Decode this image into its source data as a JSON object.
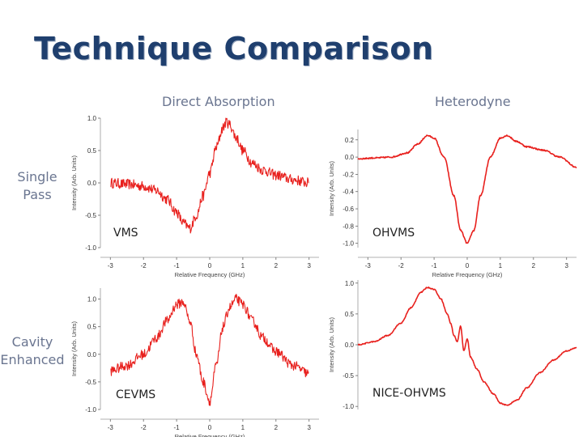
{
  "slide": {
    "title": "Technique Comparison",
    "columns": [
      "Direct Absorption",
      "Heterodyne"
    ],
    "rows": [
      [
        "Single",
        "Pass"
      ],
      [
        "Cavity",
        "Enhanced"
      ]
    ]
  },
  "colors": {
    "trace": "#e8201d",
    "title": "#1f3f6e",
    "subtitle": "#6a7590"
  },
  "chart_data": [
    {
      "type": "line",
      "tag": "VMS",
      "xlabel": "Relative Frequency (GHz)",
      "ylabel": "Intensity (Arb. Units)",
      "xlim": [
        -3.3,
        3.3
      ],
      "ylim": [
        -1.0,
        1.0
      ],
      "xticks": [
        "-3",
        "-2",
        "-1",
        "0",
        "1",
        "2",
        "3"
      ],
      "xtick_values": [
        -3,
        -2,
        -1,
        0,
        1,
        2,
        3
      ],
      "yticks": [
        "-1.0",
        "-0.5",
        "0.0",
        "0.5",
        "1.0"
      ],
      "ytick_values": [
        -1.0,
        -0.5,
        0.0,
        0.5,
        1.0
      ],
      "x": [
        -3.0,
        -2.5,
        -2.0,
        -1.6,
        -1.3,
        -1.0,
        -0.8,
        -0.6,
        -0.4,
        -0.2,
        0.0,
        0.2,
        0.4,
        0.5,
        0.6,
        0.8,
        1.0,
        1.3,
        1.6,
        2.0,
        2.5,
        3.0
      ],
      "y": [
        0.0,
        -0.02,
        -0.05,
        -0.12,
        -0.25,
        -0.45,
        -0.62,
        -0.7,
        -0.5,
        -0.2,
        0.15,
        0.55,
        0.85,
        0.95,
        0.9,
        0.7,
        0.5,
        0.3,
        0.2,
        0.12,
        0.05,
        0.0
      ],
      "noise": 0.08
    },
    {
      "type": "line",
      "tag": "OHVMS",
      "xlabel": "Relative Frequency (GHz)",
      "ylabel": "Intensity (Arb. Units)",
      "xlim": [
        -3.3,
        3.3
      ],
      "ylim": [
        -1.05,
        0.32
      ],
      "xticks": [
        "-3",
        "-2",
        "-1",
        "0",
        "1",
        "2",
        "3"
      ],
      "xtick_values": [
        -3,
        -2,
        -1,
        0,
        1,
        2,
        3
      ],
      "yticks": [
        "-1.0",
        "-0.8",
        "-0.6",
        "-0.4",
        "-0.2",
        "0.0",
        "0.2"
      ],
      "ytick_values": [
        -1.0,
        -0.8,
        -0.6,
        -0.4,
        -0.2,
        0.0,
        0.2
      ],
      "x": [
        -3.3,
        -2.8,
        -2.3,
        -1.8,
        -1.5,
        -1.2,
        -1.0,
        -0.7,
        -0.4,
        -0.2,
        0.0,
        0.2,
        0.4,
        0.7,
        1.0,
        1.2,
        1.5,
        1.8,
        2.3,
        2.8,
        3.3
      ],
      "y": [
        -0.02,
        -0.01,
        0.0,
        0.05,
        0.15,
        0.25,
        0.22,
        0.0,
        -0.45,
        -0.85,
        -1.0,
        -0.85,
        -0.45,
        0.0,
        0.22,
        0.25,
        0.18,
        0.12,
        0.08,
        0.0,
        -0.12
      ],
      "noise": 0.008
    },
    {
      "type": "line",
      "tag": "CEVMS",
      "xlabel": "Relative Frequency (GHz)",
      "ylabel": "Intensity (Arb. Units)",
      "xlim": [
        -3.3,
        3.3
      ],
      "ylim": [
        -1.0,
        1.2
      ],
      "xticks": [
        "-3",
        "-2",
        "-1",
        "0",
        "1",
        "2",
        "3"
      ],
      "xtick_values": [
        -3,
        -2,
        -1,
        0,
        1,
        2,
        3
      ],
      "yticks": [
        "-1.0",
        "-0.5",
        "0.0",
        "0.5",
        "1.0"
      ],
      "ytick_values": [
        -1.0,
        -0.5,
        0.0,
        0.5,
        1.0
      ],
      "x": [
        -3.0,
        -2.5,
        -2.0,
        -1.6,
        -1.3,
        -1.0,
        -0.8,
        -0.6,
        -0.4,
        -0.2,
        0.0,
        0.2,
        0.4,
        0.6,
        0.8,
        1.0,
        1.3,
        1.6,
        2.0,
        2.5,
        3.0
      ],
      "y": [
        -0.3,
        -0.2,
        0.0,
        0.3,
        0.6,
        0.9,
        0.95,
        0.6,
        0.0,
        -0.5,
        -0.85,
        -0.2,
        0.5,
        0.85,
        1.0,
        0.9,
        0.6,
        0.3,
        0.05,
        -0.2,
        -0.35
      ],
      "noise": 0.09
    },
    {
      "type": "line",
      "tag": "NICE-OHVMS",
      "xlabel": "",
      "ylabel": "Intensity (Arb. Units)",
      "xlim": [
        -3.3,
        3.3
      ],
      "ylim": [
        -1.05,
        1.05
      ],
      "xticks": [],
      "xtick_values": [],
      "yticks": [
        "-1.0",
        "-0.5",
        "0.0",
        "0.5",
        "1.0"
      ],
      "ytick_values": [
        -1.0,
        -0.5,
        0.0,
        0.5,
        1.0
      ],
      "x": [
        -3.3,
        -2.8,
        -2.4,
        -2.0,
        -1.7,
        -1.4,
        -1.2,
        -1.0,
        -0.8,
        -0.6,
        -0.5,
        -0.4,
        -0.3,
        -0.2,
        -0.1,
        0.0,
        0.1,
        0.3,
        0.5,
        0.8,
        1.0,
        1.2,
        1.5,
        1.8,
        2.2,
        2.6,
        3.0,
        3.3
      ],
      "y": [
        0.0,
        0.05,
        0.15,
        0.35,
        0.6,
        0.85,
        0.93,
        0.9,
        0.75,
        0.5,
        0.35,
        0.15,
        0.05,
        0.3,
        -0.1,
        0.1,
        -0.2,
        -0.4,
        -0.6,
        -0.8,
        -0.95,
        -0.98,
        -0.9,
        -0.7,
        -0.45,
        -0.25,
        -0.1,
        -0.05
      ],
      "noise": 0.008
    }
  ]
}
